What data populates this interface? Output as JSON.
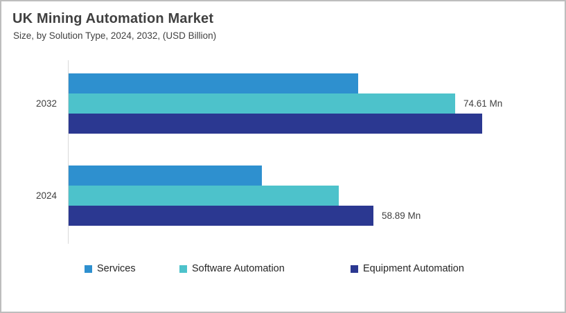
{
  "header": {
    "title": "UK Mining Automation Market",
    "subtitle": "Size, by Solution Type, 2024, 2032, (USD Billion)"
  },
  "chart_data": {
    "type": "bar",
    "orientation": "horizontal",
    "title": "UK Mining Automation Market",
    "subtitle": "Size, by Solution Type, 2024, 2032, (USD Billion)",
    "unit_suffix": "Mn",
    "categories": [
      "2032",
      "2024"
    ],
    "series": [
      {
        "name": "Services",
        "color": "#2E90CF",
        "values": [
          55.9,
          37.3
        ],
        "value_labels": [
          null,
          null
        ]
      },
      {
        "name": "Software Automation",
        "color": "#4DC2CB",
        "values": [
          74.61,
          52.1
        ],
        "value_labels": [
          "74.61 Mn",
          null
        ]
      },
      {
        "name": "Equipment Automation",
        "color": "#2B3891",
        "values": [
          79.8,
          58.89
        ],
        "value_labels": [
          null,
          "58.89 Mn"
        ]
      }
    ],
    "xlim": [
      0,
      96
    ],
    "grid": false,
    "legend_position": "bottom",
    "axis_line_color": "#D9D9D9",
    "text_color": "#404040"
  },
  "frame": {
    "border_color": "#BDBDBD",
    "background": "#FFFFFF"
  }
}
